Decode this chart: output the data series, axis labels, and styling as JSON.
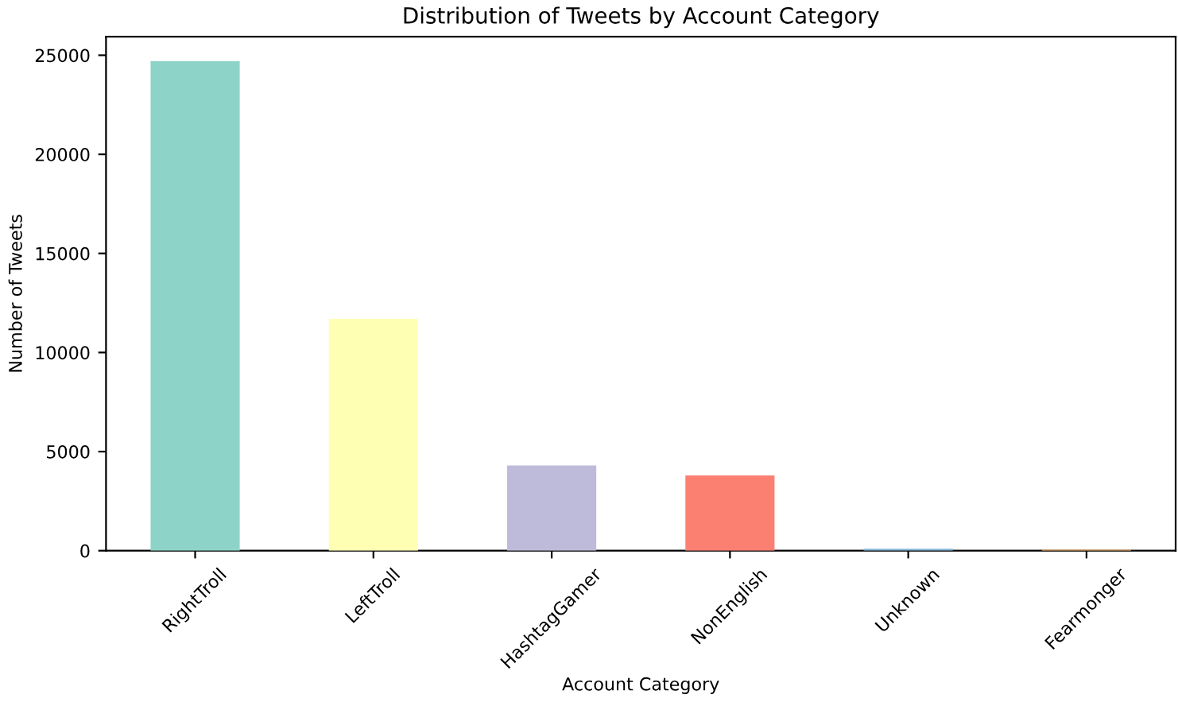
{
  "chart_data": {
    "type": "bar",
    "title": "Distribution of Tweets by Account Category",
    "xlabel": "Account Category",
    "ylabel": "Number of Tweets",
    "categories": [
      "RightTroll",
      "LeftTroll",
      "HashtagGamer",
      "NonEnglish",
      "Unknown",
      "Fearmonger"
    ],
    "values": [
      24700,
      11700,
      4300,
      3800,
      100,
      50
    ],
    "colors": [
      "#8dd3c7",
      "#ffffb3",
      "#bebada",
      "#fb8072",
      "#80b1d3",
      "#fdb462"
    ],
    "ylim": [
      0,
      25935
    ],
    "yticks": [
      0,
      5000,
      10000,
      15000,
      20000,
      25000
    ],
    "grid": false,
    "legend": false
  }
}
